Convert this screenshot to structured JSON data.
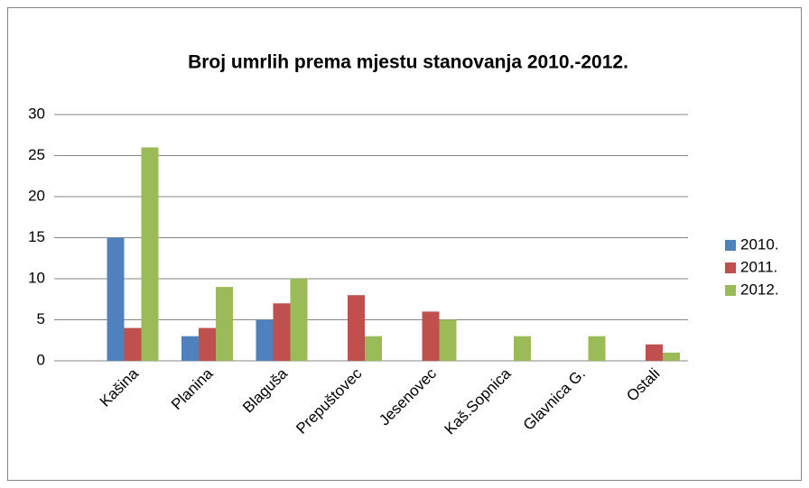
{
  "chart_data": {
    "type": "bar",
    "title": "Broj umrlih prema mjestu stanovanja 2010.-2012.",
    "categories": [
      "Kašina",
      "Planina",
      "Blaguša",
      "Prepuštovec",
      "Jesenovec",
      "Kaš.Sopnica",
      "Glavnica G.",
      "Ostali"
    ],
    "series": [
      {
        "name": "2010.",
        "color": "#4f81bd",
        "values": [
          15,
          3,
          5,
          0,
          0,
          0,
          0,
          0
        ]
      },
      {
        "name": "2011.",
        "color": "#c0504d",
        "values": [
          4,
          4,
          7,
          8,
          6,
          0,
          0,
          2
        ]
      },
      {
        "name": "2012.",
        "color": "#9bbb59",
        "values": [
          26,
          9,
          10,
          3,
          5,
          3,
          3,
          1
        ]
      }
    ],
    "ylim": [
      0,
      30
    ],
    "yticks": [
      0,
      5,
      10,
      15,
      20,
      25,
      30
    ],
    "grid": true,
    "legend": "right"
  }
}
